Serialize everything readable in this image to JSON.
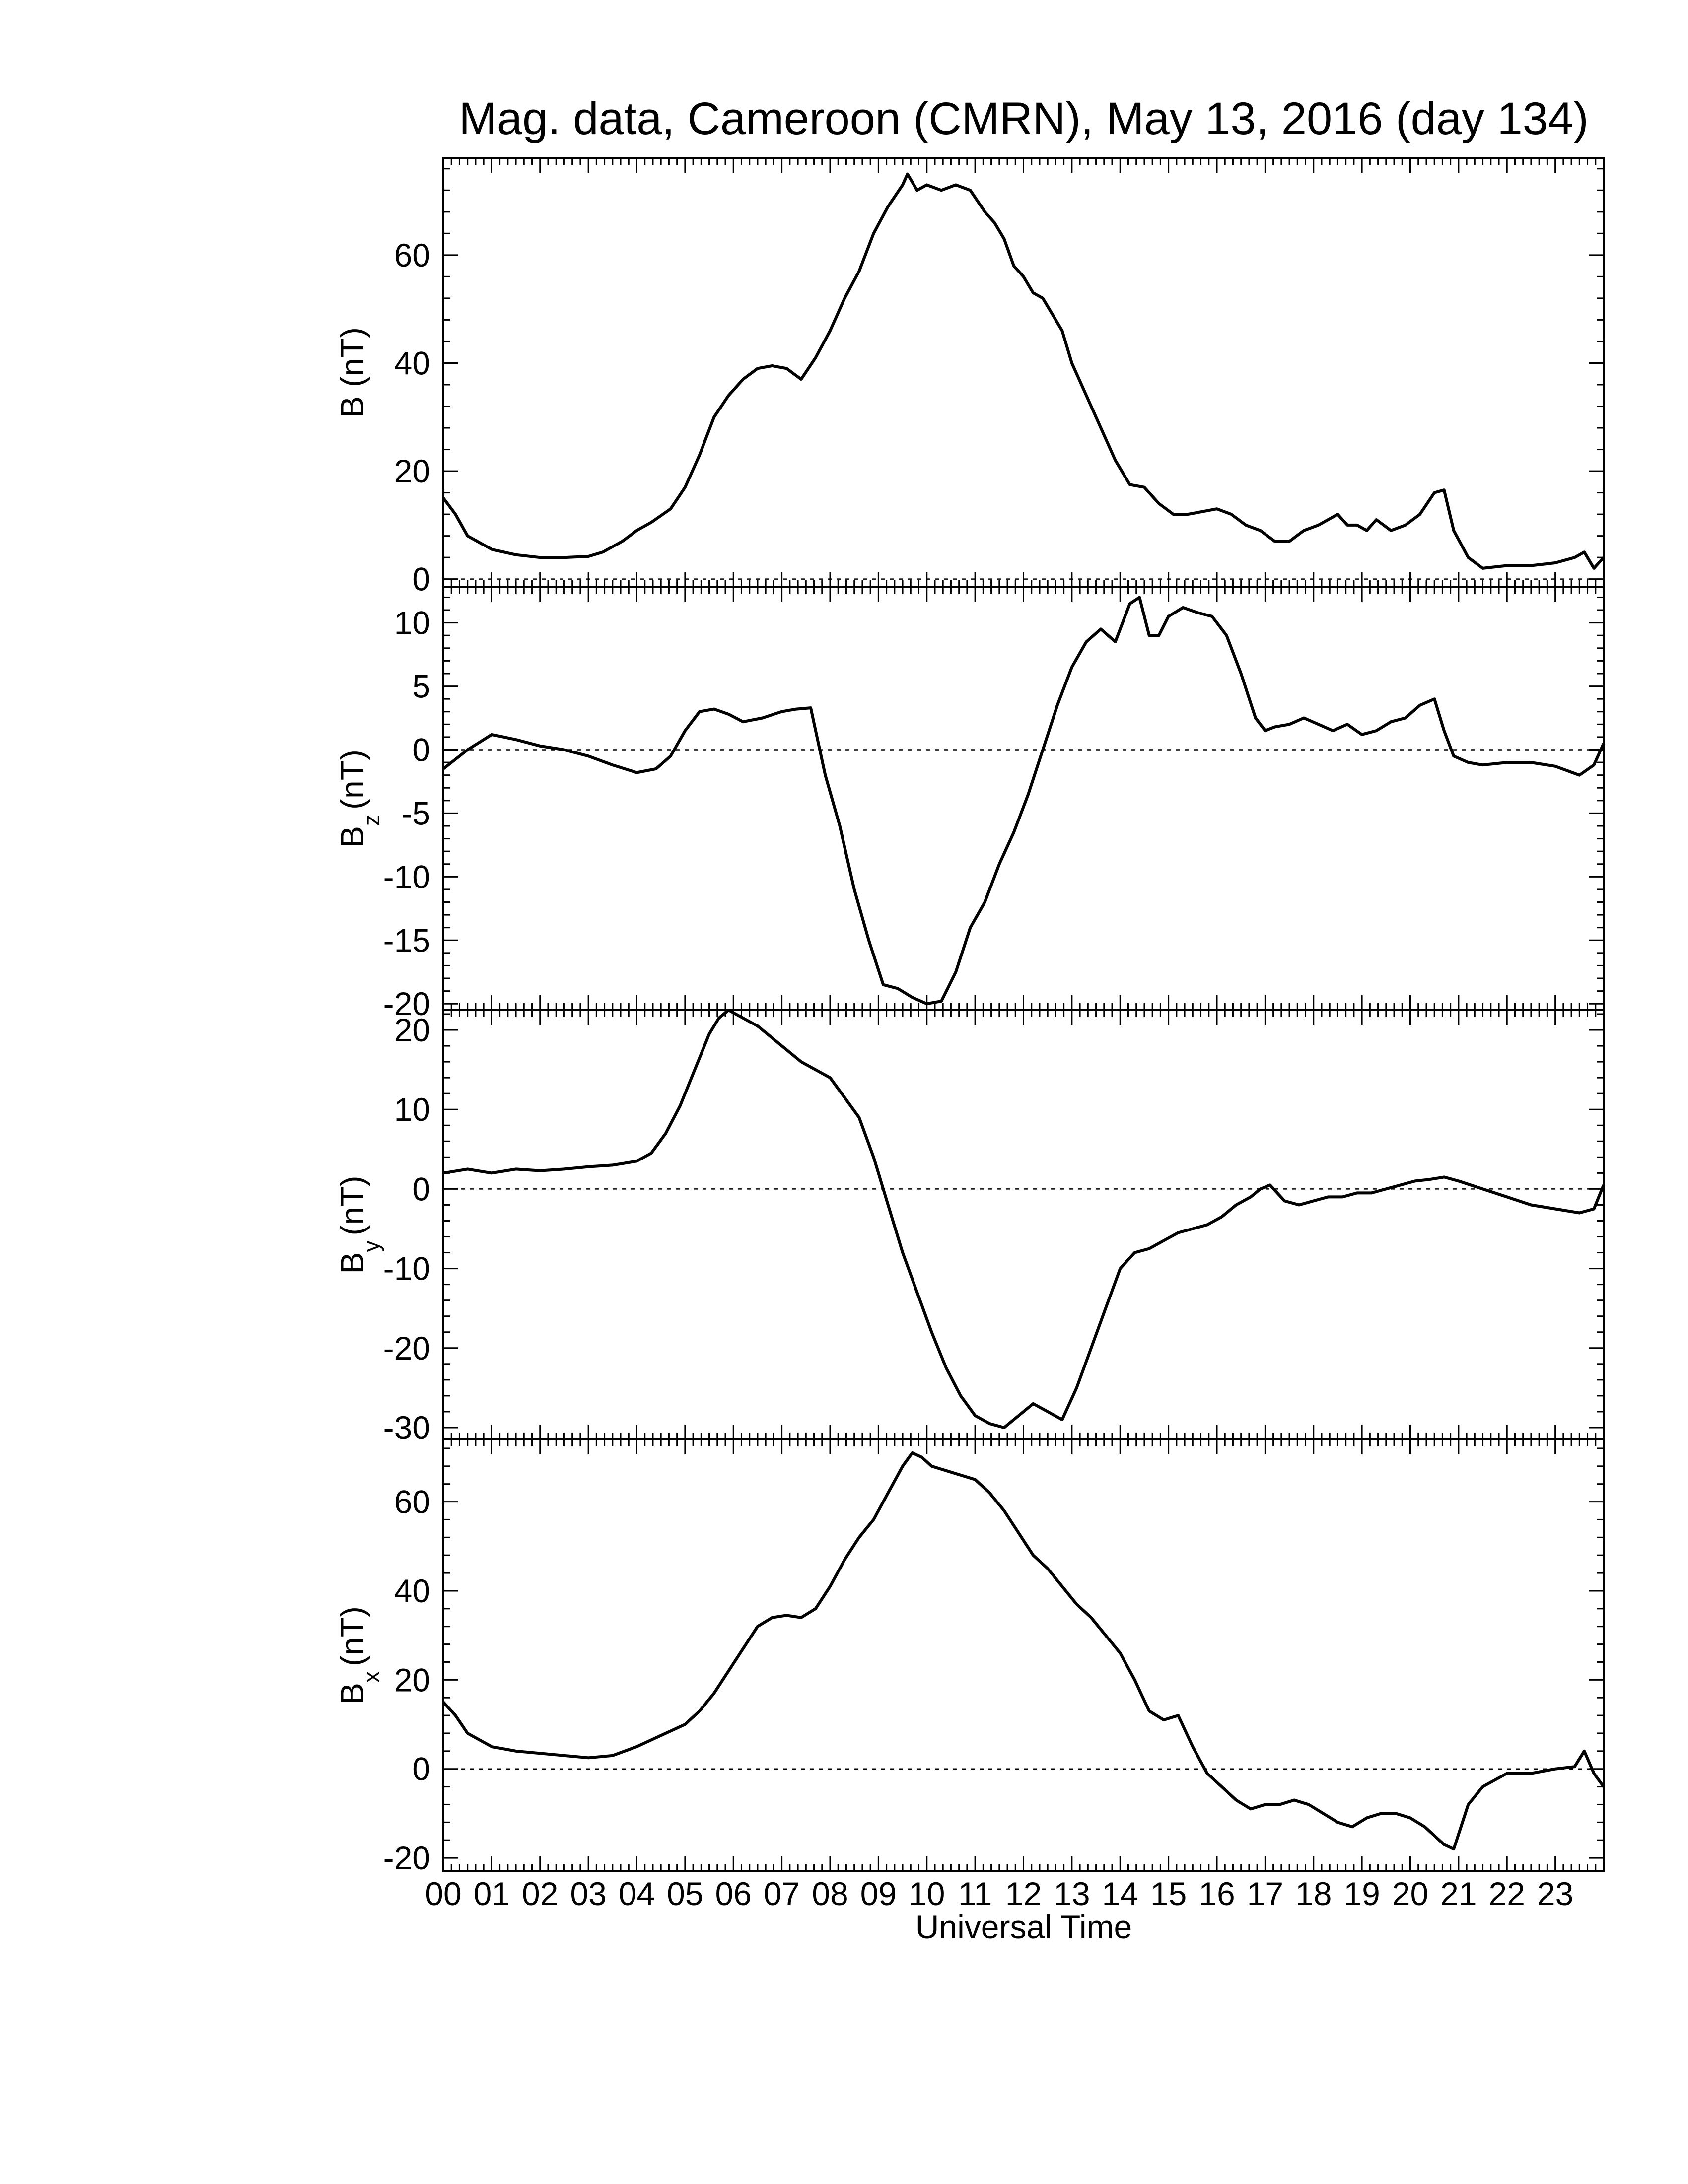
{
  "chart_data": {
    "type": "line",
    "title": "Mag. data, Cameroon (CMRN), May 13, 2016 (day 134)",
    "xlabel": "Universal Time",
    "xlim": [
      0,
      24
    ],
    "x_tick_labels": [
      "00",
      "01",
      "02",
      "03",
      "04",
      "05",
      "06",
      "07",
      "08",
      "09",
      "10",
      "11",
      "12",
      "13",
      "14",
      "15",
      "16",
      "17",
      "18",
      "19",
      "20",
      "21",
      "22",
      "23"
    ],
    "panels": [
      {
        "ylabel_main": "B",
        "ylabel_sub": "",
        "ylabel_unit": "(nT)",
        "ylim": [
          -1.5,
          78
        ],
        "yticks": [
          0,
          20,
          40,
          60
        ],
        "zero_line": true,
        "x": [
          0,
          0.25,
          0.5,
          1,
          1.5,
          2,
          2.5,
          3,
          3.3,
          3.7,
          4,
          4.3,
          4.7,
          5,
          5.3,
          5.6,
          5.9,
          6.2,
          6.5,
          6.8,
          7.1,
          7.4,
          7.7,
          8,
          8.3,
          8.6,
          8.9,
          9.2,
          9.5,
          9.6,
          9.8,
          10,
          10.3,
          10.6,
          10.9,
          11.2,
          11.4,
          11.6,
          11.8,
          12,
          12.2,
          12.4,
          12.6,
          12.8,
          13,
          13.3,
          13.6,
          13.9,
          14.2,
          14.5,
          14.8,
          15.1,
          15.4,
          15.7,
          16,
          16.3,
          16.6,
          16.9,
          17.2,
          17.5,
          17.8,
          18.1,
          18.3,
          18.5,
          18.7,
          18.9,
          19.1,
          19.3,
          19.6,
          19.9,
          20.2,
          20.5,
          20.7,
          20.9,
          21.2,
          21.5,
          22,
          22.5,
          23,
          23.4,
          23.6,
          23.8,
          24
        ],
        "y": [
          15,
          12,
          8,
          5.5,
          4.5,
          4,
          4,
          4.2,
          5,
          7,
          9,
          10.5,
          13,
          17,
          23,
          30,
          34,
          37,
          39,
          39.5,
          39,
          37,
          41,
          46,
          52,
          57,
          64,
          69,
          73,
          75,
          72,
          73,
          72,
          73,
          72,
          68,
          66,
          63,
          58,
          56,
          53,
          52,
          49,
          46,
          40,
          34,
          28,
          22,
          17.5,
          17,
          14,
          12,
          12,
          12.5,
          13,
          12,
          10,
          9,
          7,
          7,
          9,
          10,
          11,
          12,
          10,
          10,
          9,
          11,
          9,
          10,
          12,
          16,
          16.5,
          9,
          4,
          2,
          2.5,
          2.5,
          3,
          4,
          5,
          2,
          4
        ]
      },
      {
        "ylabel_main": "B",
        "ylabel_sub": "z",
        "ylabel_unit": "(nT)",
        "ylim": [
          -20.5,
          12.8
        ],
        "yticks": [
          -20,
          -15,
          -10,
          -5,
          0,
          5,
          10
        ],
        "zero_line": true,
        "x": [
          0,
          0.5,
          1,
          1.5,
          2,
          2.5,
          3,
          3.5,
          4,
          4.4,
          4.7,
          5,
          5.3,
          5.6,
          5.9,
          6.2,
          6.6,
          7,
          7.3,
          7.6,
          7.9,
          8.2,
          8.5,
          8.8,
          9.1,
          9.4,
          9.7,
          10,
          10.3,
          10.6,
          10.9,
          11.2,
          11.5,
          11.8,
          12.1,
          12.4,
          12.7,
          13,
          13.3,
          13.6,
          13.9,
          14.2,
          14.4,
          14.6,
          14.8,
          15,
          15.3,
          15.6,
          15.9,
          16.2,
          16.5,
          16.8,
          17,
          17.2,
          17.5,
          17.8,
          18.1,
          18.4,
          18.7,
          19,
          19.3,
          19.6,
          19.9,
          20.2,
          20.5,
          20.7,
          20.9,
          21.2,
          21.5,
          22,
          22.5,
          23,
          23.5,
          23.8,
          24
        ],
        "y": [
          -1.5,
          0,
          1.2,
          0.8,
          0.3,
          0,
          -0.5,
          -1.2,
          -1.8,
          -1.5,
          -0.5,
          1.5,
          3,
          3.2,
          2.8,
          2.2,
          2.5,
          3,
          3.2,
          3.3,
          -2,
          -6,
          -11,
          -15,
          -18.5,
          -18.8,
          -19.5,
          -20,
          -19.8,
          -17.5,
          -14,
          -12,
          -9,
          -6.5,
          -3.5,
          0,
          3.5,
          6.5,
          8.5,
          9.5,
          8.5,
          11.5,
          12,
          9,
          9,
          10.5,
          11.2,
          10.8,
          10.5,
          9,
          6,
          2.5,
          1.5,
          1.8,
          2,
          2.5,
          2,
          1.5,
          2,
          1.2,
          1.5,
          2.2,
          2.5,
          3.5,
          4,
          1.5,
          -0.5,
          -1,
          -1.2,
          -1,
          -1,
          -1.3,
          -2,
          -1.2,
          0.5
        ]
      },
      {
        "ylabel_main": "B",
        "ylabel_sub": "y",
        "ylabel_unit": "(nT)",
        "ylim": [
          -31.5,
          22.5
        ],
        "yticks": [
          -30,
          -20,
          -10,
          0,
          10,
          20
        ],
        "zero_line": true,
        "x": [
          0,
          0.5,
          1,
          1.5,
          2,
          2.5,
          3,
          3.5,
          4,
          4.3,
          4.6,
          4.9,
          5.2,
          5.5,
          5.7,
          5.9,
          6.2,
          6.5,
          6.8,
          7.1,
          7.4,
          7.7,
          8,
          8.3,
          8.6,
          8.9,
          9.2,
          9.5,
          9.8,
          10.1,
          10.4,
          10.7,
          11,
          11.3,
          11.6,
          11.9,
          12.2,
          12.5,
          12.8,
          13.1,
          13.4,
          13.7,
          14,
          14.3,
          14.6,
          14.9,
          15.2,
          15.5,
          15.8,
          16.1,
          16.4,
          16.7,
          16.9,
          17.1,
          17.4,
          17.7,
          18,
          18.3,
          18.6,
          18.9,
          19.2,
          19.5,
          19.8,
          20.1,
          20.4,
          20.7,
          21,
          21.5,
          22,
          22.5,
          23,
          23.5,
          23.8,
          24
        ],
        "y": [
          2,
          2.5,
          2,
          2.5,
          2.3,
          2.5,
          2.8,
          3,
          3.5,
          4.5,
          7,
          10.5,
          15,
          19.5,
          21.5,
          22.5,
          21.5,
          20.5,
          19,
          17.5,
          16,
          15,
          14,
          11.5,
          9,
          4,
          -2,
          -8,
          -13,
          -18,
          -22.5,
          -26,
          -28.5,
          -29.5,
          -30,
          -28.5,
          -27,
          -28,
          -29,
          -25,
          -20,
          -15,
          -10,
          -8,
          -7.5,
          -6.5,
          -5.5,
          -5,
          -4.5,
          -3.5,
          -2,
          -1,
          0,
          0.5,
          -1.5,
          -2,
          -1.5,
          -1,
          -1,
          -0.5,
          -0.5,
          0,
          0.5,
          1,
          1.2,
          1.5,
          1,
          0,
          -1,
          -2,
          -2.5,
          -3,
          -2.5,
          0.5
        ]
      },
      {
        "ylabel_main": "B",
        "ylabel_sub": "x",
        "ylabel_unit": "(nT)",
        "ylim": [
          -23,
          74
        ],
        "yticks": [
          -20,
          0,
          20,
          40,
          60
        ],
        "zero_line": true,
        "x": [
          0,
          0.25,
          0.5,
          1,
          1.5,
          2,
          2.5,
          3,
          3.5,
          4,
          4.5,
          5,
          5.3,
          5.6,
          5.9,
          6.2,
          6.5,
          6.8,
          7.1,
          7.4,
          7.7,
          8,
          8.3,
          8.6,
          8.9,
          9.2,
          9.5,
          9.7,
          9.9,
          10.1,
          10.4,
          10.7,
          11,
          11.3,
          11.6,
          11.9,
          12.2,
          12.5,
          12.8,
          13.1,
          13.4,
          13.7,
          14,
          14.3,
          14.6,
          14.9,
          15.2,
          15.5,
          15.8,
          16.1,
          16.4,
          16.7,
          17,
          17.3,
          17.6,
          17.9,
          18.2,
          18.5,
          18.8,
          19.1,
          19.4,
          19.7,
          20,
          20.3,
          20.5,
          20.7,
          20.9,
          21.2,
          21.5,
          22,
          22.5,
          23,
          23.4,
          23.6,
          23.8,
          24
        ],
        "y": [
          15,
          12,
          8,
          5,
          4,
          3.5,
          3,
          2.5,
          3,
          5,
          7.5,
          10,
          13,
          17,
          22,
          27,
          32,
          34,
          34.5,
          34,
          36,
          41,
          47,
          52,
          56,
          62,
          68,
          71,
          70,
          68,
          67,
          66,
          65,
          62,
          58,
          53,
          48,
          45,
          41,
          37,
          34,
          30,
          26,
          20,
          13,
          11,
          12,
          5,
          -1,
          -4,
          -7,
          -9,
          -8,
          -8,
          -7,
          -8,
          -10,
          -12,
          -13,
          -11,
          -10,
          -10,
          -11,
          -13,
          -15,
          -17,
          -18,
          -8,
          -4,
          -1,
          -1,
          0,
          0.5,
          4,
          -1,
          -4
        ]
      }
    ]
  }
}
